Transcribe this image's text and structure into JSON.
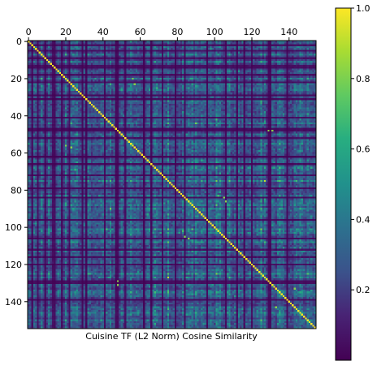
{
  "chart_data": {
    "type": "heatmap",
    "title": "",
    "xlabel": "Cuisine TF (L2 Norm) Cosine Similarity",
    "ylabel": "",
    "n": 155,
    "xlim": [
      -0.5,
      154.5
    ],
    "ylim": [
      154.5,
      -0.5
    ],
    "x_ticks": [
      0,
      20,
      40,
      60,
      80,
      100,
      120,
      140
    ],
    "y_ticks": [
      0,
      20,
      40,
      60,
      80,
      100,
      120,
      140
    ],
    "x_tick_labels": [
      "0",
      "20",
      "40",
      "60",
      "80",
      "100",
      "120",
      "140"
    ],
    "y_tick_labels": [
      "0",
      "20",
      "40",
      "60",
      "80",
      "100",
      "120",
      "140"
    ],
    "x_axis_position": "top",
    "grid": false,
    "colormap": "viridis",
    "colorbar": {
      "range": [
        0.0,
        1.0
      ],
      "ticks": [
        0.2,
        0.4,
        0.6,
        0.8,
        1.0
      ],
      "tick_labels": [
        "0.2",
        "0.4",
        "0.6",
        "0.8",
        "1.0"
      ],
      "position": "right"
    },
    "diagonal_value": 1.0,
    "low_similarity_indices": [
      2,
      5,
      9,
      13,
      14,
      18,
      22,
      29,
      31,
      41,
      47,
      48,
      52,
      62,
      66,
      72,
      79,
      84,
      96,
      106,
      112,
      116,
      120,
      129,
      130,
      139
    ],
    "high_similarity_indices": [
      11,
      20,
      26,
      44,
      55,
      68,
      75,
      88,
      90,
      101,
      103,
      108,
      125,
      135,
      146,
      150
    ],
    "highlighted_pairs": [
      [
        23,
        57
      ],
      [
        48,
        131
      ],
      [
        56,
        20
      ],
      [
        84,
        105
      ],
      [
        106,
        86
      ],
      [
        129,
        48
      ],
      [
        133,
        143
      ],
      [
        143,
        133
      ]
    ]
  }
}
